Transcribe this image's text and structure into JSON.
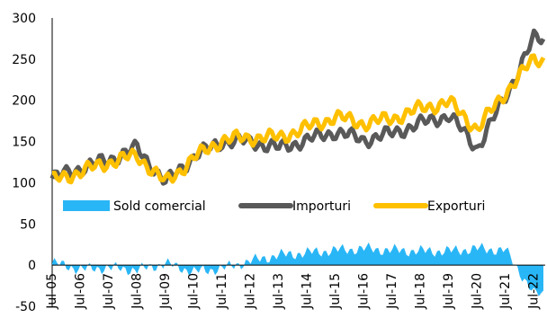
{
  "chart_data": {
    "type": "line",
    "title": "",
    "xlabel": "",
    "ylabel": "",
    "ylim": [
      -50,
      300
    ],
    "yticks": [
      -50,
      0,
      50,
      100,
      150,
      200,
      250,
      300
    ],
    "grid": false,
    "legend_position": "center",
    "x_tick_labels": [
      "Jul-05",
      "Jul-06",
      "Jul-07",
      "Jul-08",
      "Jul-09",
      "Jul-10",
      "Jul-11",
      "Jul-12",
      "Jul-13",
      "Jul-14",
      "Jul-15",
      "Jul-16",
      "Jul-17",
      "Jul-18",
      "Jul-19",
      "Jul-20",
      "Jul-21",
      "Jul-22"
    ],
    "x_anchor_years": [
      2005,
      2006,
      2007,
      2008,
      2009,
      2010,
      2011,
      2012,
      2013,
      2014,
      2015,
      2016,
      2017,
      2018,
      2019,
      2020,
      2021,
      2022
    ],
    "series": [
      {
        "name": "Sold comercial",
        "kind": "area",
        "color": "#29b6f6",
        "anchor_values": [
          3,
          -5,
          -3,
          -6,
          2,
          -8,
          -4,
          5,
          12,
          15,
          18,
          20,
          18,
          17,
          17,
          20,
          18,
          -35
        ]
      },
      {
        "name": "Importuri",
        "kind": "line",
        "color": "#595959",
        "anchor_values": [
          105,
          118,
          128,
          142,
          100,
          132,
          150,
          150,
          142,
          152,
          162,
          152,
          160,
          172,
          182,
          142,
          205,
          275
        ]
      },
      {
        "name": "Exporturi",
        "kind": "line",
        "color": "#ffc000",
        "anchor_values": [
          103,
          113,
          125,
          133,
          100,
          130,
          152,
          155,
          155,
          167,
          180,
          172,
          178,
          190,
          198,
          165,
          210,
          250
        ]
      }
    ]
  }
}
